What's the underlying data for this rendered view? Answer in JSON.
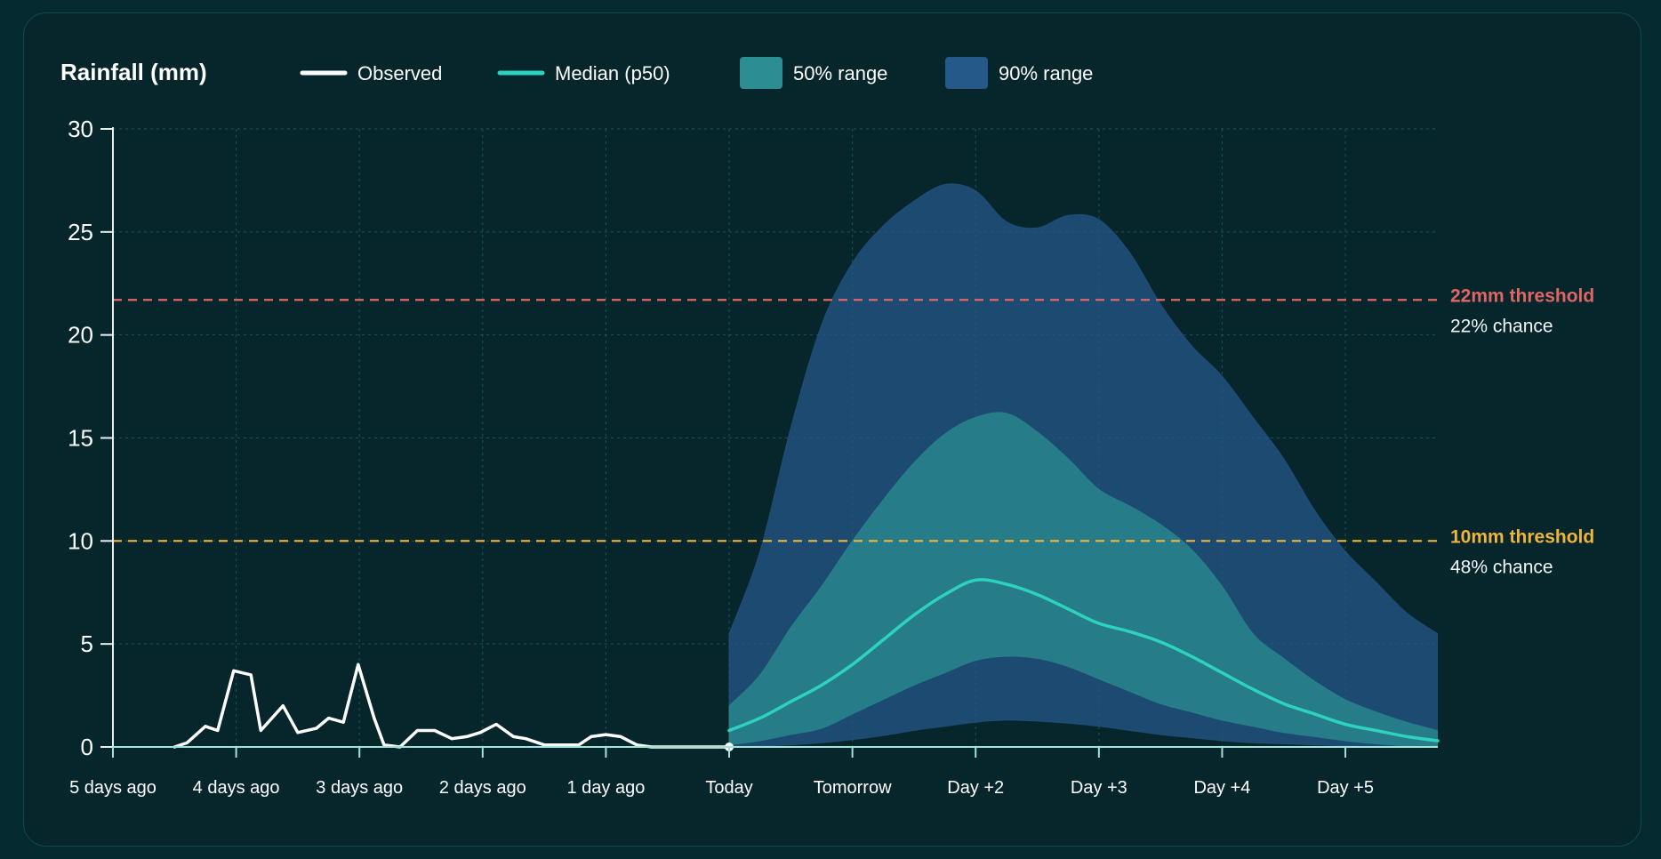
{
  "colors": {
    "background": "#052a2f",
    "card": "#06262c",
    "grid": "#1f6a66",
    "axis": "#e6f1ef",
    "observed": "#ffffff",
    "median": "#2ed3bf",
    "band50": "#2a8e92",
    "band90": "#25598a",
    "threshold_high": "#e06565",
    "threshold_low": "#f0b43c"
  },
  "chart_data": {
    "type": "area",
    "title": "Rainfall (mm)",
    "ylim": [
      0,
      30
    ],
    "yticks": [
      0,
      5,
      10,
      15,
      20,
      25,
      30
    ],
    "x_axis": {
      "unit": "days relative to today",
      "min": -5,
      "max": 5.75,
      "ticks": [
        {
          "x": -5,
          "label": "5 days ago"
        },
        {
          "x": -4,
          "label": "4 days ago"
        },
        {
          "x": -3,
          "label": "3 days ago"
        },
        {
          "x": -2,
          "label": "2 days ago"
        },
        {
          "x": -1,
          "label": "1 day ago"
        },
        {
          "x": 0,
          "label": "Today"
        },
        {
          "x": 1,
          "label": "Tomorrow"
        },
        {
          "x": 2,
          "label": "Day +2"
        },
        {
          "x": 3,
          "label": "Day +3"
        },
        {
          "x": 4,
          "label": "Day +4"
        },
        {
          "x": 5,
          "label": "Day +5"
        }
      ]
    },
    "grid": true,
    "legend": {
      "placement": "top",
      "entries": [
        {
          "label": "Observed",
          "kind": "line",
          "color": "#ffffff"
        },
        {
          "label": "Median (p50)",
          "kind": "line",
          "color": "#2ed3bf"
        },
        {
          "label": "50% range",
          "kind": "area",
          "color": "#2a8e92"
        },
        {
          "label": "90% range",
          "kind": "area",
          "color": "#25598a"
        }
      ]
    },
    "observed": {
      "x": [
        -4.5,
        -4.4,
        -4.25,
        -4.15,
        -4.02,
        -3.88,
        -3.8,
        -3.62,
        -3.5,
        -3.35,
        -3.25,
        -3.13,
        -3.01,
        -2.88,
        -2.8,
        -2.67,
        -2.53,
        -2.39,
        -2.25,
        -2.13,
        -2.02,
        -1.89,
        -1.75,
        -1.65,
        -1.5,
        -1.34,
        -1.22,
        -1.12,
        -1.0,
        -0.88,
        -0.75,
        -0.63,
        -0.5,
        -0.25,
        0.0
      ],
      "y": [
        0.0,
        0.2,
        1.0,
        0.8,
        3.7,
        3.5,
        0.8,
        2.0,
        0.7,
        0.9,
        1.4,
        1.2,
        4.0,
        1.4,
        0.1,
        0.0,
        0.8,
        0.8,
        0.4,
        0.5,
        0.7,
        1.1,
        0.5,
        0.4,
        0.1,
        0.1,
        0.1,
        0.5,
        0.6,
        0.5,
        0.1,
        0.0,
        0.0,
        0.0,
        0.0
      ]
    },
    "forecast_x": [
      0,
      0.25,
      0.5,
      0.75,
      1.0,
      1.25,
      1.5,
      1.75,
      2.0,
      2.25,
      2.5,
      2.75,
      3.0,
      3.25,
      3.5,
      3.75,
      4.0,
      4.25,
      4.5,
      4.75,
      5.0,
      5.25,
      5.5,
      5.75
    ],
    "series": [
      {
        "name": "Median (p50)",
        "values": [
          0.8,
          1.4,
          2.2,
          3.0,
          4.0,
          5.2,
          6.4,
          7.4,
          8.1,
          7.9,
          7.4,
          6.7,
          6.0,
          5.6,
          5.1,
          4.4,
          3.6,
          2.8,
          2.1,
          1.6,
          1.1,
          0.8,
          0.5,
          0.3
        ]
      },
      {
        "name": "50% range",
        "lower": [
          0.1,
          0.3,
          0.6,
          0.9,
          1.6,
          2.3,
          3.0,
          3.6,
          4.2,
          4.4,
          4.3,
          3.9,
          3.3,
          2.7,
          2.1,
          1.7,
          1.3,
          1.0,
          0.7,
          0.5,
          0.3,
          0.15,
          0.05,
          0.0
        ],
        "upper": [
          2.0,
          3.5,
          5.8,
          7.8,
          10.0,
          12.0,
          13.8,
          15.2,
          16.0,
          16.2,
          15.3,
          14.0,
          12.5,
          11.7,
          10.8,
          9.6,
          7.8,
          5.5,
          4.3,
          3.2,
          2.3,
          1.7,
          1.2,
          0.8
        ]
      },
      {
        "name": "90% range",
        "lower": [
          0.0,
          0.05,
          0.1,
          0.2,
          0.35,
          0.55,
          0.8,
          1.0,
          1.2,
          1.3,
          1.25,
          1.15,
          1.0,
          0.8,
          0.6,
          0.45,
          0.3,
          0.2,
          0.15,
          0.1,
          0.05,
          0.0,
          0.0,
          0.0
        ],
        "upper": [
          5.5,
          9.5,
          15.5,
          20.5,
          23.5,
          25.3,
          26.5,
          27.3,
          27.0,
          25.5,
          25.2,
          25.8,
          25.6,
          24.0,
          21.5,
          19.5,
          18.0,
          16.0,
          14.0,
          11.5,
          9.5,
          8.0,
          6.5,
          5.5
        ]
      }
    ],
    "thresholds": [
      {
        "value": 21.7,
        "label": "22mm threshold",
        "chance": "22% chance",
        "color": "#e06565"
      },
      {
        "value": 10,
        "label": "10mm threshold",
        "chance": "48% chance",
        "color": "#f0b43c"
      }
    ]
  }
}
